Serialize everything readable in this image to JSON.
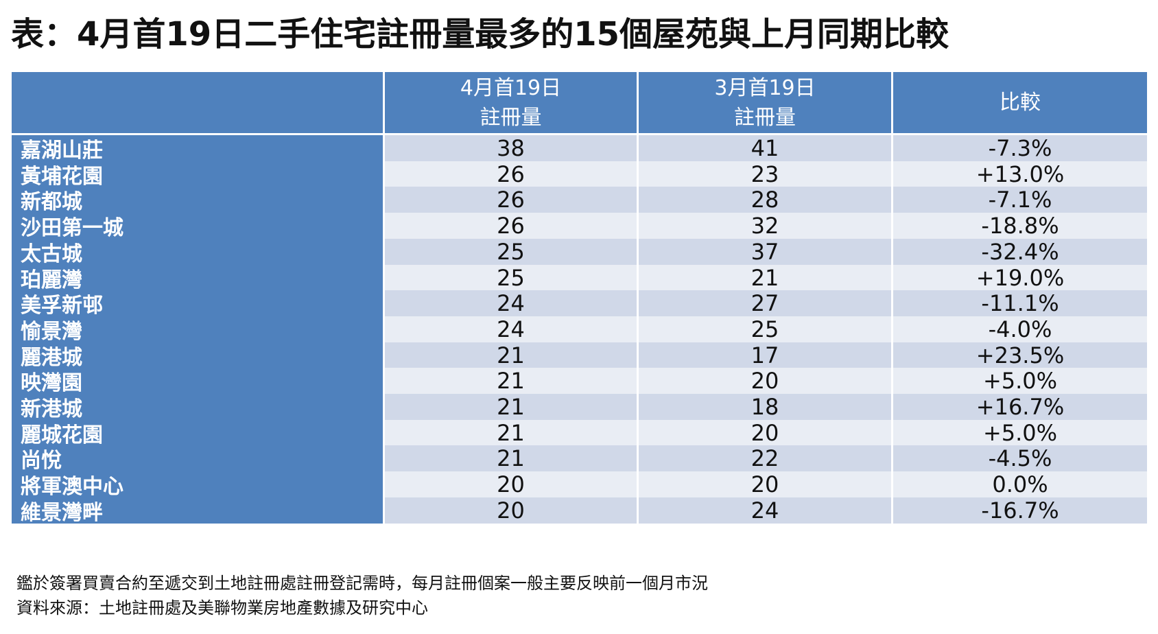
{
  "title": "表：4月首19日二手住宅註冊量最多的15個屋苑與上月同期比較",
  "chart_data": {
    "type": "table",
    "columns": [
      "",
      [
        "4月首19日",
        "註冊量"
      ],
      [
        "3月首19日",
        "註冊量"
      ],
      "比較"
    ],
    "rows": [
      [
        "嘉湖山莊",
        "38",
        "41",
        "-7.3%"
      ],
      [
        "黃埔花園",
        "26",
        "23",
        "+13.0%"
      ],
      [
        "新都城",
        "26",
        "28",
        "-7.1%"
      ],
      [
        "沙田第一城",
        "26",
        "32",
        "-18.8%"
      ],
      [
        "太古城",
        "25",
        "37",
        "-32.4%"
      ],
      [
        "珀麗灣",
        "25",
        "21",
        "+19.0%"
      ],
      [
        "美孚新邨",
        "24",
        "27",
        "-11.1%"
      ],
      [
        "愉景灣",
        "24",
        "25",
        "-4.0%"
      ],
      [
        "麗港城",
        "21",
        "17",
        "+23.5%"
      ],
      [
        "映灣園",
        "21",
        "20",
        "+5.0%"
      ],
      [
        "新港城",
        "21",
        "18",
        "+16.7%"
      ],
      [
        "麗城花園",
        "21",
        "20",
        "+5.0%"
      ],
      [
        "尚悅",
        "21",
        "22",
        "-4.5%"
      ],
      [
        "將軍澳中心",
        "20",
        "20",
        "0.0%"
      ],
      [
        "維景灣畔",
        "20",
        "24",
        "-16.7%"
      ]
    ]
  },
  "notes": [
    "鑑於簽署買賣合約至遞交到土地註冊處註冊登記需時，每月註冊個案一般主要反映前一個月市況",
    "資料來源：土地註冊處及美聯物業房地產數據及研究中心"
  ],
  "colors": {
    "header_bg": "#4f81bd",
    "header_text": "#ffffff",
    "row_band_dark": "#d0d8e8",
    "row_band_light": "#e9edf4"
  }
}
